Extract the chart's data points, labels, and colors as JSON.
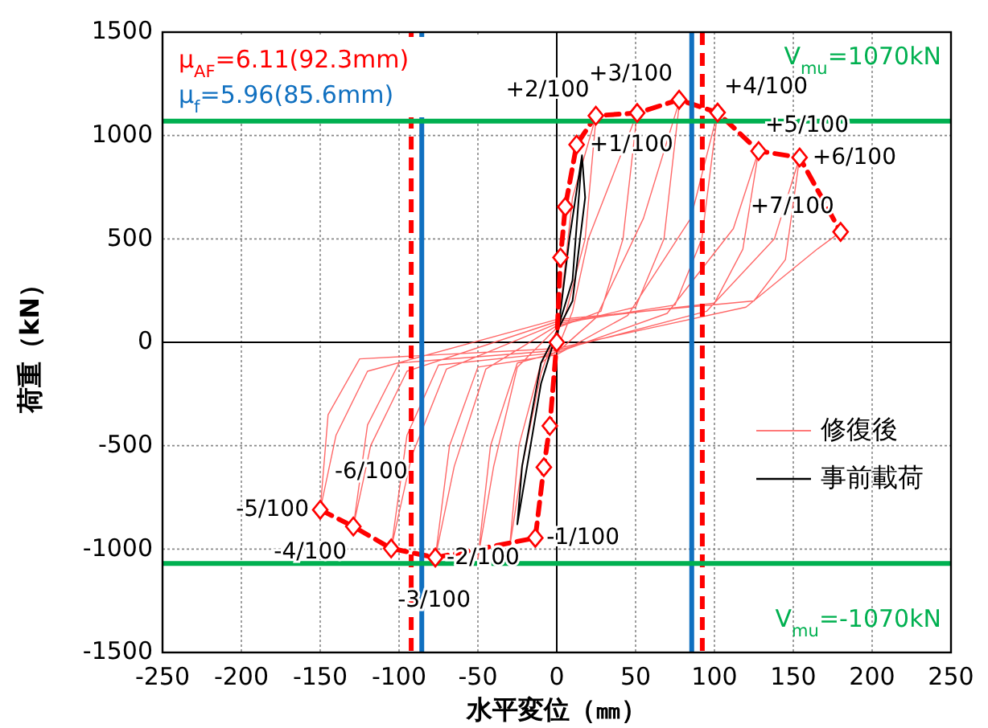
{
  "chart_data": {
    "type": "line",
    "xlabel": "水平変位（㎜）",
    "ylabel": "荷重（kN）",
    "xlim": [
      -250,
      250
    ],
    "xticks": [
      -250,
      -200,
      -150,
      -100,
      -50,
      0,
      50,
      100,
      150,
      200,
      250
    ],
    "ylim": [
      -1500,
      1500
    ],
    "yticks": [
      -1500,
      -1000,
      -500,
      0,
      500,
      1000,
      1500
    ],
    "grid": true,
    "legend": "right",
    "series": [
      {
        "name": "修復後",
        "color": "#ff4d4d",
        "line_style": "solid",
        "marker": "none",
        "x": [
          0,
          10,
          25,
          18,
          5,
          0,
          -10,
          -22,
          -30,
          -24,
          -10,
          0,
          10,
          20,
          51,
          42,
          28,
          0,
          -25,
          -40,
          -50,
          -42,
          -25,
          0,
          25,
          55,
          78,
          68,
          50,
          0,
          -45,
          -65,
          -77,
          -68,
          -50,
          0,
          45,
          85,
          102,
          92,
          75,
          0,
          -70,
          -92,
          -105,
          -95,
          -75,
          0,
          70,
          112,
          128,
          118,
          100,
          0,
          -95,
          -118,
          -129,
          -120,
          -100,
          0,
          95,
          138,
          154,
          145,
          125,
          0,
          -120,
          -140,
          -150,
          -145,
          -125,
          0,
          120,
          165,
          180
        ],
        "values": [
          0,
          700,
          1096,
          500,
          120,
          60,
          -150,
          -600,
          -1000,
          -500,
          -100,
          -40,
          150,
          500,
          1109,
          500,
          150,
          70,
          -120,
          -600,
          -1045,
          -500,
          -100,
          -50,
          120,
          600,
          1173,
          500,
          170,
          80,
          -130,
          -600,
          -1041,
          -500,
          -120,
          -60,
          130,
          600,
          1111,
          500,
          180,
          90,
          -130,
          -550,
          -997,
          -450,
          -110,
          -50,
          140,
          550,
          925,
          450,
          190,
          100,
          -140,
          -500,
          -891,
          -400,
          -100,
          -40,
          150,
          500,
          894,
          400,
          200,
          110,
          -140,
          -450,
          -810,
          -350,
          -80,
          -30,
          170,
          450,
          534
        ]
      },
      {
        "name": "事前載荷",
        "color": "#000000",
        "line_style": "solid",
        "marker": "none",
        "x": [
          0,
          8,
          16,
          18,
          10,
          0,
          -10,
          -25,
          -22,
          -10,
          0,
          10,
          16
        ],
        "values": [
          0,
          500,
          904,
          700,
          200,
          50,
          -200,
          -880,
          -600,
          -100,
          50,
          300,
          904
        ]
      },
      {
        "color": "#ff0000",
        "line_style": "dashed",
        "marker": "diamond",
        "x": [
          -150,
          -129,
          -105,
          -77,
          -13.6,
          -8.2,
          -4.4,
          0,
          2.4,
          5.4,
          12.6,
          24.8,
          51,
          77.6,
          102,
          128,
          154,
          180
        ],
        "values": [
          -810,
          -891,
          -997,
          -1041,
          -946,
          -604,
          -404,
          0,
          410,
          655,
          956,
          1096,
          1109,
          1173,
          1111,
          925,
          894,
          534
        ]
      }
    ],
    "ref_lines": [
      {
        "axis": "x",
        "value": 92.3,
        "label": "μ$_{AF}$=6.11(92.3mm)",
        "color": "#ff0000",
        "line_style": "dashed"
      },
      {
        "axis": "x",
        "value": 85.6,
        "label": "μ$_{f}$=5.96(85.6mm)",
        "color": "#1070c0",
        "line_style": "solid"
      },
      {
        "axis": "x",
        "value": -92.3,
        "color": "#ff0000",
        "line_style": "dashed"
      },
      {
        "axis": "x",
        "value": -85.6,
        "color": "#1070c0",
        "line_style": "solid"
      },
      {
        "axis": "y",
        "value": 1070,
        "label": "V$_{mu}$=1070kN",
        "color": "#00b050",
        "line_style": "solid"
      },
      {
        "axis": "y",
        "value": -1070,
        "label": "V$_{mu}$=-1070kN",
        "color": "#00b050",
        "line_style": "solid"
      }
    ],
    "annotations": [
      {
        "text": "+1/100",
        "x": 12.6,
        "y": 956
      },
      {
        "text": "+2/100",
        "x": 24.8,
        "y": 1096
      },
      {
        "text": "+3/100",
        "x": 77.6,
        "y": 1173
      },
      {
        "text": "+4/100",
        "x": 102,
        "y": 1111
      },
      {
        "text": "+5/100",
        "x": 128,
        "y": 925
      },
      {
        "text": "+6/100",
        "x": 154,
        "y": 894
      },
      {
        "text": "+7/100",
        "x": 180,
        "y": 534
      },
      {
        "text": "-6/100",
        "x": -148,
        "y": -626
      },
      {
        "text": "-5/100",
        "x": -150,
        "y": -810
      },
      {
        "text": "-4/100",
        "x": -129,
        "y": -891
      },
      {
        "text": "-3/100",
        "x": -105,
        "y": -997
      },
      {
        "text": "-2/100",
        "x": -77,
        "y": -1041
      },
      {
        "text": "-1/100",
        "x": -13.6,
        "y": -946
      }
    ]
  }
}
